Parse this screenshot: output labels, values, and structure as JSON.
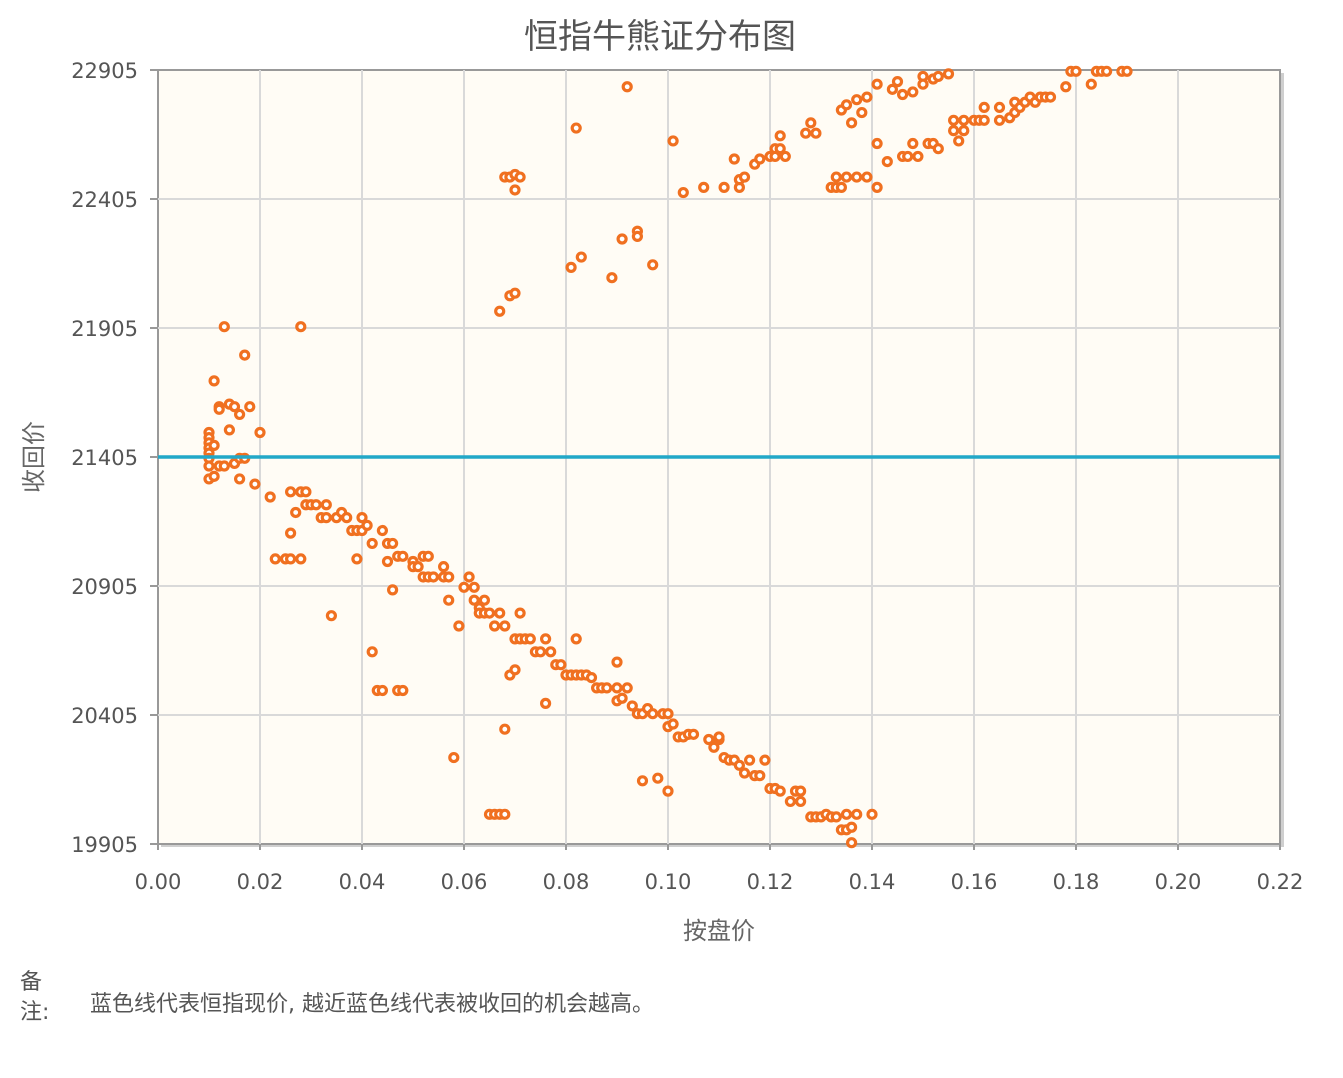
{
  "chart_data": {
    "type": "scatter",
    "title": "恒指牛熊证分布图",
    "xlabel": "按盘价",
    "ylabel": "收回价",
    "xlim": [
      0,
      0.22
    ],
    "ylim": [
      19905,
      22905
    ],
    "x_ticks": [
      "0.00",
      "0.02",
      "0.04",
      "0.06",
      "0.08",
      "0.10",
      "0.12",
      "0.14",
      "0.16",
      "0.18",
      "0.20",
      "0.22"
    ],
    "y_ticks": [
      "19905",
      "20405",
      "20905",
      "21405",
      "21905",
      "22405",
      "22905"
    ],
    "grid": true,
    "background": "#fffcf5",
    "point_color": "#f07020",
    "reference_line": {
      "y": 21405,
      "color": "#22a8c8"
    },
    "series": [
      {
        "points": [
          [
            0.01,
            21500
          ],
          [
            0.01,
            21480
          ],
          [
            0.01,
            21460
          ],
          [
            0.01,
            21440
          ],
          [
            0.01,
            21420
          ],
          [
            0.01,
            21400
          ],
          [
            0.01,
            21370
          ],
          [
            0.01,
            21320
          ],
          [
            0.011,
            21450
          ],
          [
            0.011,
            21330
          ],
          [
            0.011,
            21700
          ],
          [
            0.012,
            21600
          ],
          [
            0.012,
            21590
          ],
          [
            0.012,
            21370
          ],
          [
            0.013,
            21910
          ],
          [
            0.013,
            21370
          ],
          [
            0.014,
            21610
          ],
          [
            0.014,
            21510
          ],
          [
            0.015,
            21600
          ],
          [
            0.015,
            21380
          ],
          [
            0.016,
            21570
          ],
          [
            0.016,
            21320
          ],
          [
            0.016,
            21400
          ],
          [
            0.017,
            21400
          ],
          [
            0.017,
            21800
          ],
          [
            0.018,
            21600
          ],
          [
            0.019,
            21300
          ],
          [
            0.02,
            21500
          ],
          [
            0.022,
            21250
          ],
          [
            0.023,
            21010
          ],
          [
            0.025,
            21010
          ],
          [
            0.026,
            21010
          ],
          [
            0.026,
            21270
          ],
          [
            0.026,
            21110
          ],
          [
            0.027,
            21190
          ],
          [
            0.028,
            21010
          ],
          [
            0.028,
            21910
          ],
          [
            0.028,
            21270
          ],
          [
            0.029,
            21270
          ],
          [
            0.029,
            21220
          ],
          [
            0.03,
            21220
          ],
          [
            0.031,
            21220
          ],
          [
            0.032,
            21170
          ],
          [
            0.033,
            21220
          ],
          [
            0.033,
            21170
          ],
          [
            0.034,
            20790
          ],
          [
            0.035,
            21170
          ],
          [
            0.036,
            21190
          ],
          [
            0.037,
            21170
          ],
          [
            0.038,
            21120
          ],
          [
            0.039,
            21120
          ],
          [
            0.039,
            21010
          ],
          [
            0.04,
            21120
          ],
          [
            0.04,
            21170
          ],
          [
            0.041,
            21140
          ],
          [
            0.042,
            21070
          ],
          [
            0.042,
            20650
          ],
          [
            0.043,
            20500
          ],
          [
            0.044,
            20500
          ],
          [
            0.044,
            21120
          ],
          [
            0.045,
            21070
          ],
          [
            0.045,
            21000
          ],
          [
            0.046,
            21070
          ],
          [
            0.046,
            20890
          ],
          [
            0.047,
            21020
          ],
          [
            0.047,
            20500
          ],
          [
            0.048,
            20500
          ],
          [
            0.048,
            21020
          ],
          [
            0.05,
            21000
          ],
          [
            0.05,
            20980
          ],
          [
            0.051,
            20980
          ],
          [
            0.052,
            21020
          ],
          [
            0.052,
            20940
          ],
          [
            0.053,
            21020
          ],
          [
            0.053,
            20940
          ],
          [
            0.054,
            20940
          ],
          [
            0.056,
            20940
          ],
          [
            0.056,
            20980
          ],
          [
            0.057,
            20940
          ],
          [
            0.057,
            20850
          ],
          [
            0.058,
            20240
          ],
          [
            0.059,
            20750
          ],
          [
            0.06,
            20900
          ],
          [
            0.061,
            20940
          ],
          [
            0.062,
            20900
          ],
          [
            0.062,
            20850
          ],
          [
            0.063,
            20820
          ],
          [
            0.063,
            20800
          ],
          [
            0.064,
            20800
          ],
          [
            0.064,
            20850
          ],
          [
            0.065,
            20800
          ],
          [
            0.065,
            20020
          ],
          [
            0.066,
            20750
          ],
          [
            0.066,
            20020
          ],
          [
            0.067,
            20800
          ],
          [
            0.067,
            20020
          ],
          [
            0.068,
            20750
          ],
          [
            0.068,
            20350
          ],
          [
            0.068,
            20020
          ],
          [
            0.069,
            20560
          ],
          [
            0.07,
            20700
          ],
          [
            0.07,
            20580
          ],
          [
            0.071,
            20800
          ],
          [
            0.071,
            20700
          ],
          [
            0.072,
            20700
          ],
          [
            0.073,
            20700
          ],
          [
            0.074,
            20650
          ],
          [
            0.075,
            20650
          ],
          [
            0.076,
            20700
          ],
          [
            0.076,
            20450
          ],
          [
            0.077,
            20650
          ],
          [
            0.078,
            20600
          ],
          [
            0.079,
            20600
          ],
          [
            0.08,
            20560
          ],
          [
            0.081,
            20560
          ],
          [
            0.082,
            20700
          ],
          [
            0.082,
            20560
          ],
          [
            0.083,
            20560
          ],
          [
            0.084,
            20560
          ],
          [
            0.085,
            20550
          ],
          [
            0.086,
            20510
          ],
          [
            0.087,
            20510
          ],
          [
            0.088,
            20510
          ],
          [
            0.09,
            20460
          ],
          [
            0.09,
            20510
          ],
          [
            0.09,
            20610
          ],
          [
            0.091,
            20470
          ],
          [
            0.092,
            20510
          ],
          [
            0.093,
            20440
          ],
          [
            0.094,
            20410
          ],
          [
            0.095,
            20150
          ],
          [
            0.095,
            20410
          ],
          [
            0.096,
            20430
          ],
          [
            0.097,
            20410
          ],
          [
            0.098,
            20160
          ],
          [
            0.099,
            20410
          ],
          [
            0.1,
            20360
          ],
          [
            0.1,
            20110
          ],
          [
            0.1,
            20410
          ],
          [
            0.101,
            20370
          ],
          [
            0.102,
            20320
          ],
          [
            0.103,
            20320
          ],
          [
            0.104,
            20330
          ],
          [
            0.105,
            20330
          ],
          [
            0.108,
            20310
          ],
          [
            0.109,
            20280
          ],
          [
            0.11,
            20310
          ],
          [
            0.11,
            20320
          ],
          [
            0.111,
            20240
          ],
          [
            0.112,
            20230
          ],
          [
            0.113,
            20230
          ],
          [
            0.114,
            20210
          ],
          [
            0.115,
            20180
          ],
          [
            0.116,
            20230
          ],
          [
            0.117,
            20170
          ],
          [
            0.118,
            20170
          ],
          [
            0.119,
            20230
          ],
          [
            0.12,
            20120
          ],
          [
            0.121,
            20120
          ],
          [
            0.122,
            20110
          ],
          [
            0.124,
            20070
          ],
          [
            0.125,
            20110
          ],
          [
            0.126,
            20070
          ],
          [
            0.126,
            20110
          ],
          [
            0.128,
            20010
          ],
          [
            0.129,
            20010
          ],
          [
            0.13,
            20010
          ],
          [
            0.131,
            20020
          ],
          [
            0.132,
            20010
          ],
          [
            0.133,
            20010
          ],
          [
            0.134,
            19960
          ],
          [
            0.135,
            19960
          ],
          [
            0.135,
            20020
          ],
          [
            0.136,
            19970
          ],
          [
            0.137,
            20020
          ],
          [
            0.14,
            20020
          ],
          [
            0.136,
            19910
          ],
          [
            0.067,
            21970
          ],
          [
            0.069,
            22030
          ],
          [
            0.07,
            22040
          ],
          [
            0.068,
            22490
          ],
          [
            0.069,
            22490
          ],
          [
            0.07,
            22500
          ],
          [
            0.071,
            22490
          ],
          [
            0.07,
            22440
          ],
          [
            0.081,
            22140
          ],
          [
            0.082,
            22680
          ],
          [
            0.083,
            22180
          ],
          [
            0.089,
            22100
          ],
          [
            0.091,
            22250
          ],
          [
            0.092,
            22840
          ],
          [
            0.094,
            22280
          ],
          [
            0.094,
            22260
          ],
          [
            0.097,
            22150
          ],
          [
            0.101,
            22630
          ],
          [
            0.103,
            22430
          ],
          [
            0.107,
            22450
          ],
          [
            0.111,
            22450
          ],
          [
            0.113,
            22560
          ],
          [
            0.114,
            22450
          ],
          [
            0.114,
            22480
          ],
          [
            0.115,
            22490
          ],
          [
            0.117,
            22540
          ],
          [
            0.118,
            22560
          ],
          [
            0.12,
            22570
          ],
          [
            0.121,
            22600
          ],
          [
            0.121,
            22570
          ],
          [
            0.122,
            22600
          ],
          [
            0.122,
            22650
          ],
          [
            0.123,
            22570
          ],
          [
            0.127,
            22660
          ],
          [
            0.128,
            22700
          ],
          [
            0.129,
            22660
          ],
          [
            0.132,
            22450
          ],
          [
            0.133,
            22490
          ],
          [
            0.133,
            22450
          ],
          [
            0.134,
            22750
          ],
          [
            0.134,
            22450
          ],
          [
            0.135,
            22490
          ],
          [
            0.135,
            22770
          ],
          [
            0.136,
            22700
          ],
          [
            0.137,
            22790
          ],
          [
            0.137,
            22490
          ],
          [
            0.138,
            22740
          ],
          [
            0.139,
            22490
          ],
          [
            0.139,
            22800
          ],
          [
            0.141,
            22620
          ],
          [
            0.141,
            22450
          ],
          [
            0.141,
            22850
          ],
          [
            0.143,
            22550
          ],
          [
            0.144,
            22830
          ],
          [
            0.145,
            22860
          ],
          [
            0.146,
            22570
          ],
          [
            0.146,
            22810
          ],
          [
            0.147,
            22570
          ],
          [
            0.148,
            22820
          ],
          [
            0.148,
            22620
          ],
          [
            0.149,
            22570
          ],
          [
            0.15,
            22880
          ],
          [
            0.15,
            22850
          ],
          [
            0.151,
            22620
          ],
          [
            0.152,
            22620
          ],
          [
            0.152,
            22870
          ],
          [
            0.153,
            22600
          ],
          [
            0.153,
            22880
          ],
          [
            0.155,
            22890
          ],
          [
            0.156,
            22710
          ],
          [
            0.156,
            22670
          ],
          [
            0.157,
            22630
          ],
          [
            0.158,
            22670
          ],
          [
            0.158,
            22710
          ],
          [
            0.16,
            22710
          ],
          [
            0.161,
            22710
          ],
          [
            0.162,
            22710
          ],
          [
            0.162,
            22760
          ],
          [
            0.165,
            22710
          ],
          [
            0.165,
            22760
          ],
          [
            0.167,
            22720
          ],
          [
            0.168,
            22780
          ],
          [
            0.168,
            22740
          ],
          [
            0.169,
            22760
          ],
          [
            0.17,
            22780
          ],
          [
            0.171,
            22800
          ],
          [
            0.172,
            22780
          ],
          [
            0.173,
            22800
          ],
          [
            0.174,
            22800
          ],
          [
            0.175,
            22800
          ],
          [
            0.178,
            22840
          ],
          [
            0.179,
            22900
          ],
          [
            0.18,
            22900
          ],
          [
            0.183,
            22850
          ],
          [
            0.184,
            22900
          ],
          [
            0.185,
            22900
          ],
          [
            0.186,
            22900
          ],
          [
            0.189,
            22900
          ],
          [
            0.19,
            22900
          ]
        ]
      }
    ]
  },
  "note": {
    "label_line1": "备",
    "label_line2": "注:",
    "text": "蓝色线代表恒指现价, 越近蓝色线代表被收回的机会越高。"
  }
}
